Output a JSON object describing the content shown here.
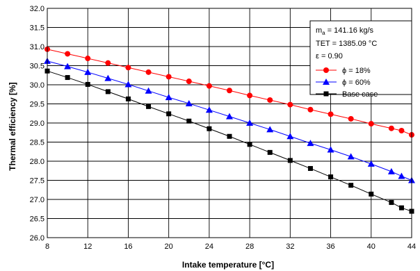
{
  "chart_data": {
    "type": "line",
    "xlabel": "Intake temperature [°C]",
    "ylabel": "Thermal efficiency [%]",
    "xlim": [
      8,
      44
    ],
    "ylim": [
      26.0,
      32.0
    ],
    "x_ticks": [
      "8",
      "12",
      "16",
      "20",
      "24",
      "28",
      "32",
      "36",
      "40",
      "44"
    ],
    "y_ticks": [
      "26.0",
      "26.5",
      "27.0",
      "27.5",
      "28.0",
      "28.5",
      "29.0",
      "29.5",
      "30.0",
      "30.5",
      "31.0",
      "31.5",
      "32.0"
    ],
    "grid": true,
    "legend_position": "top-right",
    "annotations": {
      "ma_symbol": "m",
      "ma_subscript": "a",
      "ma_value": " = 141.16 kg/s",
      "tet": "TET = 1385.09 °C",
      "epsilon": "ε = 0.90"
    },
    "series": [
      {
        "name": "ϕ = 18%",
        "color": "#ff0000",
        "marker": "circle",
        "x": [
          8,
          10,
          12,
          14,
          16,
          18,
          20,
          22,
          24,
          26,
          28,
          30,
          32,
          34,
          36,
          38,
          40,
          42,
          43,
          44
        ],
        "y": [
          30.93,
          30.81,
          30.69,
          30.57,
          30.45,
          30.33,
          30.21,
          30.09,
          29.97,
          29.85,
          29.72,
          29.6,
          29.48,
          29.35,
          29.23,
          29.11,
          28.98,
          28.86,
          28.8,
          28.69
        ]
      },
      {
        "name": "ϕ = 60%",
        "color": "#0000ff",
        "marker": "triangle",
        "x": [
          8,
          10,
          12,
          14,
          16,
          18,
          20,
          22,
          24,
          26,
          28,
          30,
          32,
          34,
          36,
          38,
          40,
          42,
          43,
          44
        ],
        "y": [
          30.62,
          30.48,
          30.33,
          30.17,
          30.01,
          29.84,
          29.67,
          29.51,
          29.34,
          29.17,
          29.0,
          28.83,
          28.65,
          28.47,
          28.3,
          28.12,
          27.93,
          27.73,
          27.61,
          27.5
        ]
      },
      {
        "name": "Base case",
        "color": "#000000",
        "marker": "square",
        "x": [
          8,
          10,
          12,
          14,
          16,
          18,
          20,
          22,
          24,
          26,
          28,
          30,
          32,
          34,
          36,
          38,
          40,
          42,
          43,
          44
        ],
        "y": [
          30.36,
          30.19,
          30.01,
          29.82,
          29.63,
          29.43,
          29.24,
          29.05,
          28.85,
          28.65,
          28.44,
          28.23,
          28.02,
          27.81,
          27.59,
          27.37,
          27.14,
          26.92,
          26.78,
          26.69
        ]
      }
    ]
  }
}
